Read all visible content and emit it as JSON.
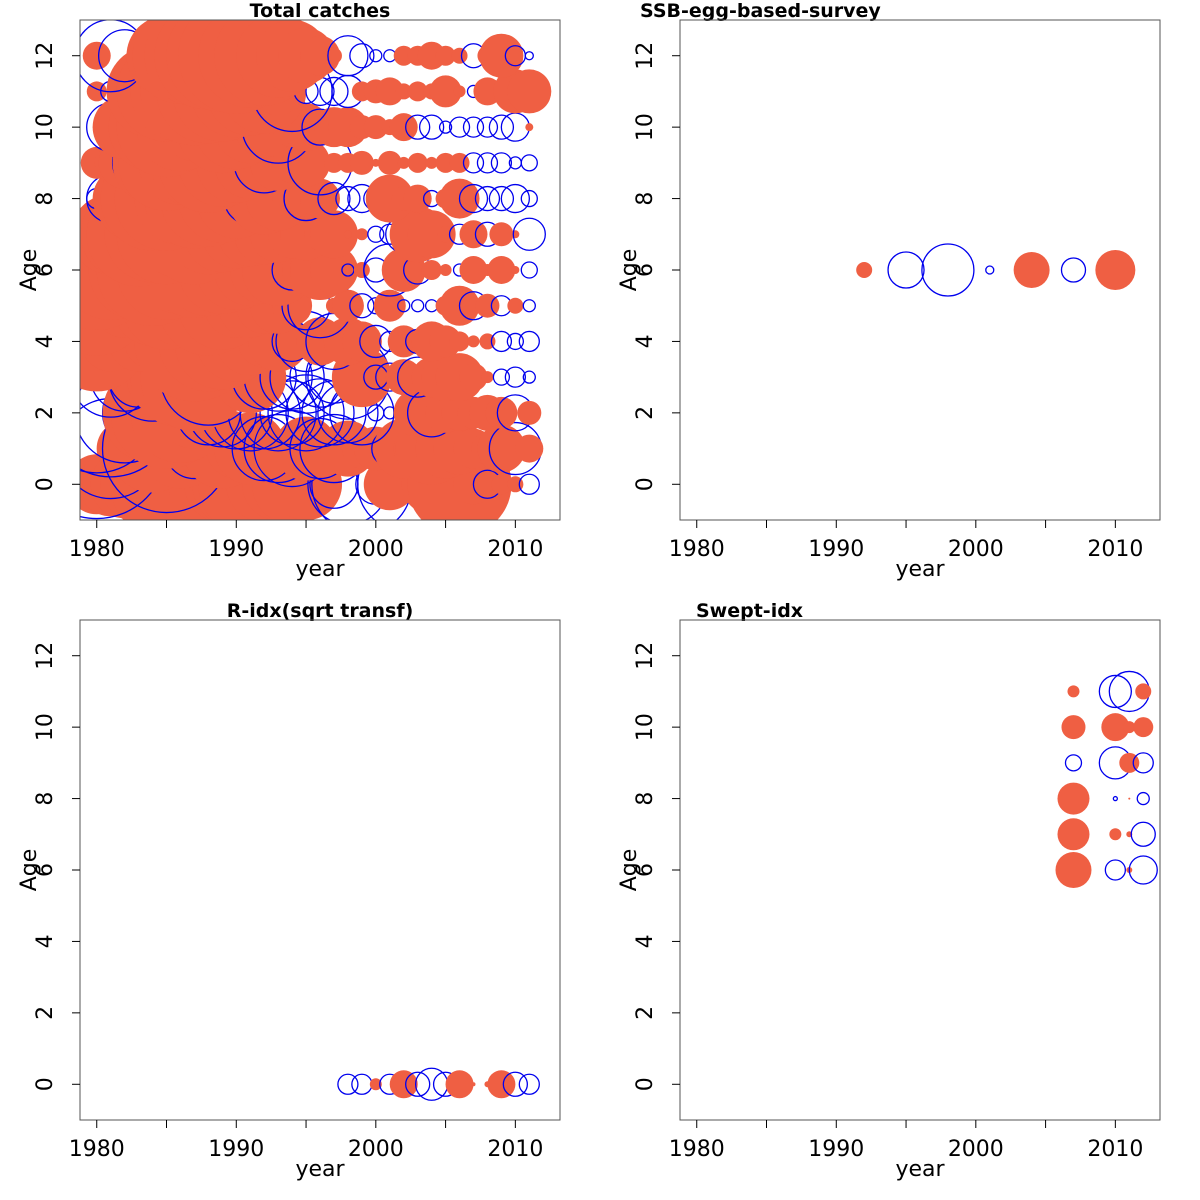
{
  "colors": {
    "positive": "#ef5f43",
    "negative": "#0000ee",
    "frame": "#555555"
  },
  "chart_data": [
    {
      "type": "scatter",
      "title": "Total catches",
      "xlabel": "year",
      "ylabel": "Age",
      "xlim": [
        1978.8,
        2013.2
      ],
      "ylim": [
        -1,
        13
      ],
      "x_ticks": [
        "1980",
        "1990",
        "2000",
        "2010"
      ],
      "y_ticks": [
        "0",
        "2",
        "4",
        "6",
        "8",
        "10",
        "12"
      ],
      "x_minor_ticks": [
        1985,
        1995,
        2005
      ],
      "years": [
        1980,
        1981,
        1982,
        1983,
        1984,
        1985,
        1986,
        1987,
        1988,
        1989,
        1990,
        1991,
        1992,
        1993,
        1994,
        1995,
        1996,
        1997,
        1998,
        1999,
        2000,
        2001,
        2002,
        2003,
        2004,
        2005,
        2006,
        2007,
        2008,
        2009,
        2010,
        2011
      ],
      "ages": [
        0,
        1,
        2,
        3,
        4,
        5,
        6,
        7,
        8,
        9,
        10,
        11,
        12
      ],
      "residuals": [
        [
          1.5,
          1.6,
          1.7,
          1.9,
          2.0,
          2.8,
          1.9,
          3.0,
          2.0,
          1.9,
          2.2,
          2.6,
          1.9,
          1.8,
          2.0,
          1.8,
          1.0,
          -1.2,
          -2.0,
          -2.5,
          -1.0,
          1.3,
          -2.3,
          0.5,
          1.5,
          1.8,
          2.6,
          1.0,
          -0.7,
          0.5,
          0.4,
          -0.5
        ],
        [
          -3.5,
          -2.5,
          1.4,
          1.5,
          2.2,
          -3.2,
          2.0,
          -1.5,
          -1.3,
          2.0,
          1.5,
          1.8,
          -1.6,
          -1.7,
          -1.9,
          1.6,
          -1.5,
          -1.7,
          1.4,
          1.0,
          1.1,
          -0.9,
          1.5,
          1.2,
          1.8,
          1.5,
          1.3,
          1.0,
          0.8,
          1.2,
          -1.3,
          0.7
        ],
        [
          -3.0,
          -3.2,
          -2.5,
          -1.8,
          2.5,
          2.8,
          2.5,
          1.8,
          -1.6,
          -1.7,
          -1.8,
          -1.9,
          -1.8,
          -1.9,
          -1.6,
          -1.9,
          -1.7,
          -1.6,
          -1.5,
          -1.6,
          -0.4,
          -0.3,
          0.3,
          1.2,
          -1.2,
          1.0,
          0.9,
          0.8,
          0.9,
          0.8,
          -0.9,
          0.6
        ],
        [
          0.3,
          -2.0,
          -1.7,
          -1.5,
          -2.2,
          2.0,
          2.5,
          2.7,
          -2.4,
          0.3,
          -0.8,
          1.8,
          -1.6,
          -1.7,
          -1.6,
          -1.8,
          -1.5,
          -1.3,
          -2.1,
          1.5,
          -0.6,
          -0.7,
          0.9,
          -1.0,
          1.0,
          1.2,
          1.2,
          0.7,
          0.3,
          -0.4,
          -0.5,
          -0.3
        ],
        [
          2.5,
          1.5,
          -0.7,
          1.5,
          1.4,
          1.5,
          2.2,
          3.0,
          2.5,
          2.4,
          2.0,
          1.7,
          1.3,
          1.5,
          -1.0,
          -1.5,
          1.2,
          -1.4,
          1.2,
          1.0,
          -0.8,
          -0.5,
          0.8,
          -0.6,
          1.0,
          0.8,
          0.5,
          0.3,
          0.4,
          -0.5,
          -0.4,
          -0.5
        ],
        [
          2.5,
          -1.2,
          1.6,
          -0.3,
          2.0,
          2.2,
          2.0,
          1.8,
          2.5,
          2.2,
          1.6,
          1.6,
          1.4,
          1.4,
          1.0,
          -1.2,
          -1.6,
          0.4,
          0.8,
          -0.6,
          -0.4,
          0.8,
          -0.3,
          -0.3,
          -0.3,
          0.5,
          1.0,
          -0.7,
          0.6,
          -0.5,
          0.4,
          -0.3
        ],
        [
          3.0,
          2.5,
          -0.3,
          2.5,
          2.8,
          2.5,
          2.2,
          2.4,
          2.3,
          2.2,
          2.0,
          1.8,
          1.7,
          1.8,
          -1.0,
          1.2,
          1.5,
          1.2,
          -0.3,
          0.4,
          -0.6,
          -1.3,
          1.1,
          -0.7,
          0.5,
          0.3,
          -0.3,
          0.7,
          0.3,
          0.7,
          0.2,
          -0.4
        ],
        [
          0.6,
          2.0,
          2.2,
          2.6,
          2.4,
          2.5,
          2.2,
          2.5,
          2.0,
          1.9,
          1.7,
          1.6,
          1.5,
          1.4,
          1.2,
          1.3,
          0.8,
          1.2,
          0.2,
          0.3,
          -0.4,
          -0.5,
          -0.9,
          1.4,
          1.2,
          0.4,
          -0.5,
          0.7,
          -0.6,
          0.6,
          0.2,
          -0.8
        ],
        [
          -0.5,
          -1.2,
          1.6,
          2.2,
          2.6,
          2.6,
          2.3,
          2.5,
          2.4,
          2.2,
          2.0,
          -1.3,
          1.8,
          1.6,
          1.0,
          -1.1,
          1.0,
          -0.8,
          -0.6,
          -0.7,
          -0.6,
          1.2,
          0.6,
          0.7,
          -0.4,
          0.5,
          1.0,
          -0.7,
          -0.6,
          -0.6,
          -0.7,
          -0.4
        ],
        [
          0.8,
          0.8,
          1.3,
          -1.3,
          2.0,
          2.4,
          2.1,
          2.2,
          2.5,
          2.2,
          2.0,
          1.8,
          -1.5,
          1.4,
          1.0,
          1.2,
          -1.6,
          0.5,
          0.5,
          0.6,
          0.2,
          0.6,
          0.3,
          0.5,
          0.3,
          0.5,
          0.5,
          -0.5,
          -0.5,
          -0.5,
          -0.3,
          -0.4
        ],
        [
          0.2,
          -1.2,
          1.6,
          -0.2,
          2.2,
          2.5,
          2.2,
          1.7,
          -0.8,
          2.3,
          2.1,
          1.8,
          1.5,
          -1.8,
          1.0,
          1.2,
          -0.9,
          1.0,
          1.0,
          0.6,
          0.6,
          0.4,
          0.7,
          -0.6,
          -0.6,
          -0.3,
          -0.5,
          -0.5,
          -0.5,
          -0.6,
          -0.7,
          0.2
        ],
        [
          0.5,
          -0.5,
          -0.8,
          0.4,
          2.3,
          2.5,
          2.5,
          2.7,
          2.6,
          2.5,
          2.3,
          2.2,
          2.1,
          1.2,
          -2.0,
          -0.6,
          -0.7,
          -0.7,
          -0.8,
          0.5,
          0.6,
          0.7,
          0.4,
          0.5,
          0.4,
          0.8,
          0.3,
          -0.3,
          0.7,
          -0.3,
          1.1,
          1.1
        ],
        [
          0.7,
          -1.8,
          -1.3,
          0.3,
          1.2,
          2.0,
          2.4,
          2.5,
          2.7,
          2.8,
          2.9,
          2.6,
          2.5,
          2.1,
          1.8,
          1.4,
          1.0,
          0.4,
          -1.0,
          -0.6,
          -0.3,
          -0.3,
          0.5,
          0.5,
          0.7,
          0.5,
          0.4,
          -0.6,
          0.5,
          1.1,
          -0.5,
          -0.2
        ]
      ]
    },
    {
      "type": "scatter",
      "title": "SSB-egg-based-survey",
      "xlabel": "year",
      "ylabel": "Age",
      "xlim": [
        1978.8,
        2013.2
      ],
      "ylim": [
        -1,
        13
      ],
      "x_ticks": [
        "1980",
        "1990",
        "2000",
        "2010"
      ],
      "y_ticks": [
        "0",
        "2",
        "4",
        "6",
        "8",
        "10",
        "12"
      ],
      "x_minor_ticks": [
        1985,
        1995,
        2005
      ],
      "points": [
        {
          "year": 1992,
          "age": 6,
          "residual": 0.4
        },
        {
          "year": 1995,
          "age": 6,
          "residual": -0.9
        },
        {
          "year": 1998,
          "age": 6,
          "residual": -1.3
        },
        {
          "year": 2001,
          "age": 6,
          "residual": -0.2
        },
        {
          "year": 2004,
          "age": 6,
          "residual": 0.9
        },
        {
          "year": 2007,
          "age": 6,
          "residual": -0.6
        },
        {
          "year": 2010,
          "age": 6,
          "residual": 1.0
        }
      ]
    },
    {
      "type": "scatter",
      "title": "R-idx(sqrt transf)",
      "xlabel": "year",
      "ylabel": "Age",
      "xlim": [
        1978.8,
        2013.2
      ],
      "ylim": [
        -1,
        13
      ],
      "x_ticks": [
        "1980",
        "1990",
        "2000",
        "2010"
      ],
      "y_ticks": [
        "0",
        "2",
        "4",
        "6",
        "8",
        "10",
        "12"
      ],
      "x_minor_ticks": [
        1985,
        1995,
        2005
      ],
      "points": [
        {
          "year": 1998,
          "age": 0,
          "residual": -0.5
        },
        {
          "year": 1999,
          "age": 0,
          "residual": -0.5
        },
        {
          "year": 2000,
          "age": 0,
          "residual": 0.3
        },
        {
          "year": 2001,
          "age": 0,
          "residual": -0.5
        },
        {
          "year": 2002,
          "age": 0,
          "residual": 0.7
        },
        {
          "year": 2003,
          "age": 0,
          "residual": -0.6
        },
        {
          "year": 2004,
          "age": 0,
          "residual": -0.8
        },
        {
          "year": 2005,
          "age": 0,
          "residual": -0.6
        },
        {
          "year": 2006,
          "age": 0,
          "residual": 0.7
        },
        {
          "year": 2007,
          "age": 0,
          "residual": 0.1
        },
        {
          "year": 2008,
          "age": 0,
          "residual": 0.15
        },
        {
          "year": 2009,
          "age": 0,
          "residual": 0.7
        },
        {
          "year": 2010,
          "age": 0,
          "residual": -0.6
        },
        {
          "year": 2011,
          "age": 0,
          "residual": -0.5
        }
      ]
    },
    {
      "type": "scatter",
      "title": "Swept-idx",
      "xlabel": "year",
      "ylabel": "Age",
      "xlim": [
        1978.8,
        2013.2
      ],
      "ylim": [
        -1,
        13
      ],
      "x_ticks": [
        "1980",
        "1990",
        "2000",
        "2010"
      ],
      "y_ticks": [
        "0",
        "2",
        "4",
        "6",
        "8",
        "10",
        "12"
      ],
      "x_minor_ticks": [
        1985,
        1995,
        2005
      ],
      "points": [
        {
          "year": 2007,
          "age": 11,
          "residual": 0.3
        },
        {
          "year": 2010,
          "age": 11,
          "residual": -0.8
        },
        {
          "year": 2011,
          "age": 11,
          "residual": -1.0
        },
        {
          "year": 2012,
          "age": 11,
          "residual": 0.4
        },
        {
          "year": 2007,
          "age": 10,
          "residual": 0.6
        },
        {
          "year": 2010,
          "age": 10,
          "residual": 0.7
        },
        {
          "year": 2011,
          "age": 10,
          "residual": 0.3
        },
        {
          "year": 2012,
          "age": 10,
          "residual": 0.5
        },
        {
          "year": 2007,
          "age": 9,
          "residual": -0.4
        },
        {
          "year": 2010,
          "age": 9,
          "residual": -0.8
        },
        {
          "year": 2011,
          "age": 9,
          "residual": 0.5
        },
        {
          "year": 2012,
          "age": 9,
          "residual": -0.5
        },
        {
          "year": 2007,
          "age": 8,
          "residual": 0.8
        },
        {
          "year": 2010,
          "age": 8,
          "residual": -0.1
        },
        {
          "year": 2011,
          "age": 8,
          "residual": 0.05
        },
        {
          "year": 2012,
          "age": 8,
          "residual": -0.3
        },
        {
          "year": 2007,
          "age": 7,
          "residual": 0.8
        },
        {
          "year": 2010,
          "age": 7,
          "residual": 0.3
        },
        {
          "year": 2011,
          "age": 7,
          "residual": 0.15
        },
        {
          "year": 2012,
          "age": 7,
          "residual": -0.6
        },
        {
          "year": 2007,
          "age": 6,
          "residual": 0.9
        },
        {
          "year": 2010,
          "age": 6,
          "residual": -0.5
        },
        {
          "year": 2011,
          "age": 6,
          "residual": 0.15
        },
        {
          "year": 2012,
          "age": 6,
          "residual": -0.7
        }
      ]
    }
  ]
}
